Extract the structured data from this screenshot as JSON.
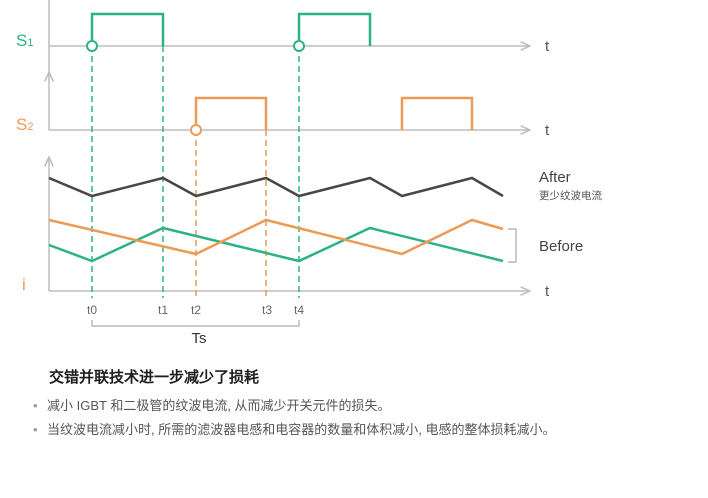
{
  "signals": {
    "s1": {
      "base": "S",
      "sub": "1"
    },
    "s2": {
      "base": "S",
      "sub": "2"
    },
    "i": "i",
    "t_axis": "t"
  },
  "ticks": [
    "t0",
    "t1",
    "t2",
    "t3",
    "t4"
  ],
  "period_label": "Ts",
  "legend": {
    "after": "After",
    "after_sub": "更少纹波电流",
    "before": "Before"
  },
  "colors": {
    "s1": "#2db383",
    "s2": "#ec9a55",
    "after_curve": "#474747",
    "axis": "#bdbdbd"
  },
  "caption": {
    "headline": "交错并联技术进一步减少了损耗",
    "bullets": [
      "减小 IGBT 和二极管的纹波电流, 从而减少开关元件的损失。",
      "当纹波电流减小时, 所需的滤波器电感和电容器的数量和体积减小, 电感的整体损耗减小。"
    ]
  }
}
